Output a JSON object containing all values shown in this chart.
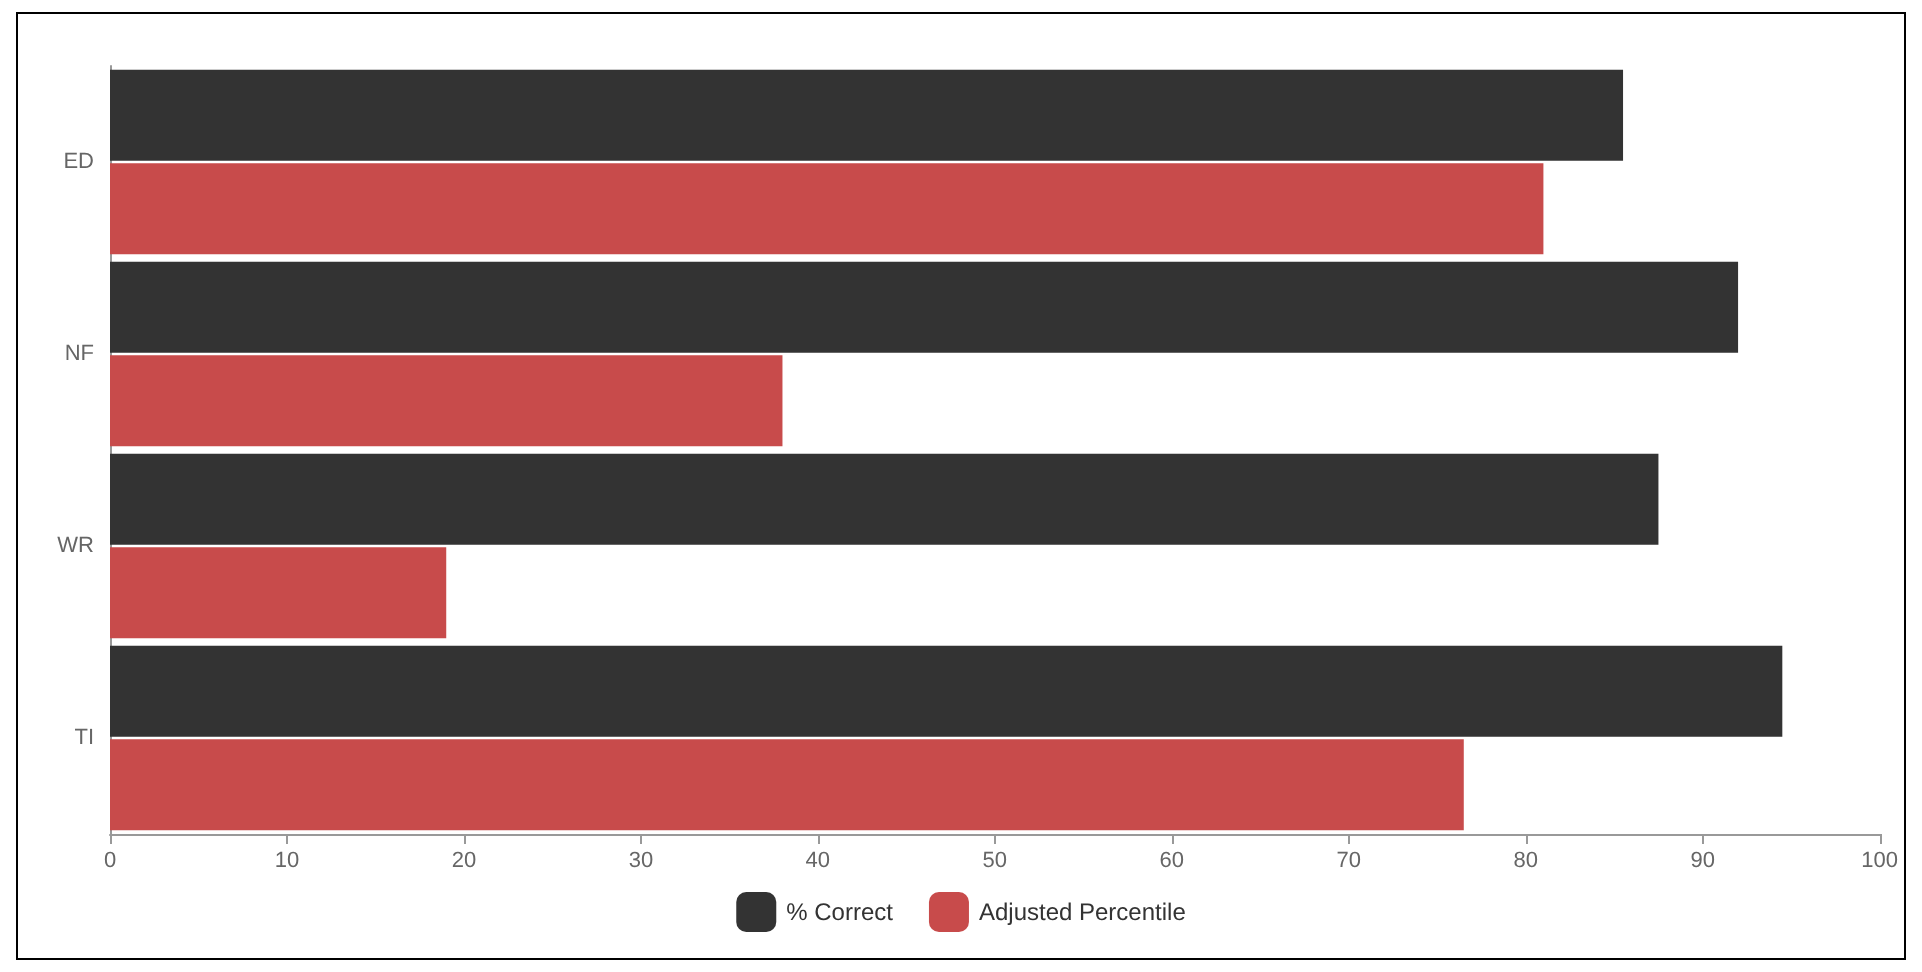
{
  "chart_data": {
    "type": "bar",
    "orientation": "horizontal",
    "categories": [
      "ED",
      "NF",
      "WR",
      "TI"
    ],
    "series": [
      {
        "name": "% Correct",
        "color": "#333333",
        "values": [
          85.5,
          92,
          87.5,
          94.5
        ]
      },
      {
        "name": "Adjusted Percentile",
        "color": "#c84b4b",
        "values": [
          81,
          38,
          19,
          76.5
        ]
      }
    ],
    "xlim": [
      0,
      100
    ],
    "xticks": [
      0,
      10,
      20,
      30,
      40,
      50,
      60,
      70,
      80,
      90,
      100
    ],
    "grid": false,
    "legend": "bottom"
  }
}
